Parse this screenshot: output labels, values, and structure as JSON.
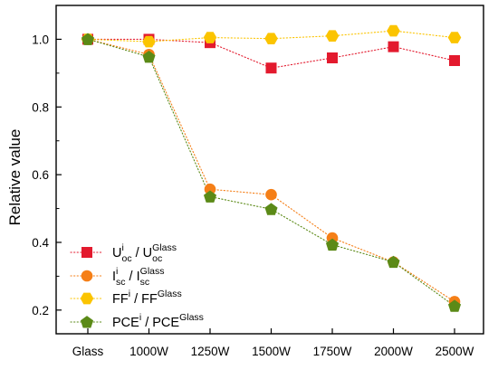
{
  "chart_data": {
    "type": "line",
    "title": "",
    "xlabel": "",
    "ylabel": "Relative value",
    "ylim": [
      0.13,
      1.1
    ],
    "yticks": [
      "0.2",
      "0.4",
      "0.6",
      "0.8",
      "1.0"
    ],
    "categories": [
      "Glass",
      "1000W",
      "1250W",
      "1500W",
      "1750W",
      "2000W",
      "2500W"
    ],
    "line_style": "dotted",
    "legend_position": "bottom-left",
    "series": [
      {
        "legend": {
          "base": "U",
          "sup1": "i",
          "sub1": "oc",
          "mid": " / U",
          "sup2": "Glass",
          "sub2": "oc"
        },
        "marker": "square",
        "color": "#e31a2e",
        "values": [
          1.0,
          1.0,
          0.99,
          0.915,
          0.945,
          0.978,
          0.937
        ]
      },
      {
        "legend": {
          "base": "I",
          "sup1": "i",
          "sub1": "sc",
          "mid": " / I",
          "sup2": "Glass",
          "sub2": "sc"
        },
        "marker": "circle",
        "color": "#f57f17",
        "values": [
          1.0,
          0.955,
          0.557,
          0.541,
          0.413,
          0.342,
          0.225
        ]
      },
      {
        "legend": {
          "base": "FF",
          "sup1": "i",
          "sub1": "",
          "mid": " / FF",
          "sup2": "Glass",
          "sub2": ""
        },
        "marker": "hexagon",
        "color": "#fbc400",
        "values": [
          1.0,
          0.993,
          1.005,
          1.002,
          1.01,
          1.025,
          1.005
        ]
      },
      {
        "legend": {
          "base": "PCE",
          "sup1": "i",
          "sub1": "",
          "mid": " / PCE",
          "sup2": "Glass",
          "sub2": ""
        },
        "marker": "pentagon",
        "color": "#5b8a17",
        "values": [
          1.0,
          0.948,
          0.535,
          0.498,
          0.393,
          0.342,
          0.212
        ]
      }
    ]
  }
}
